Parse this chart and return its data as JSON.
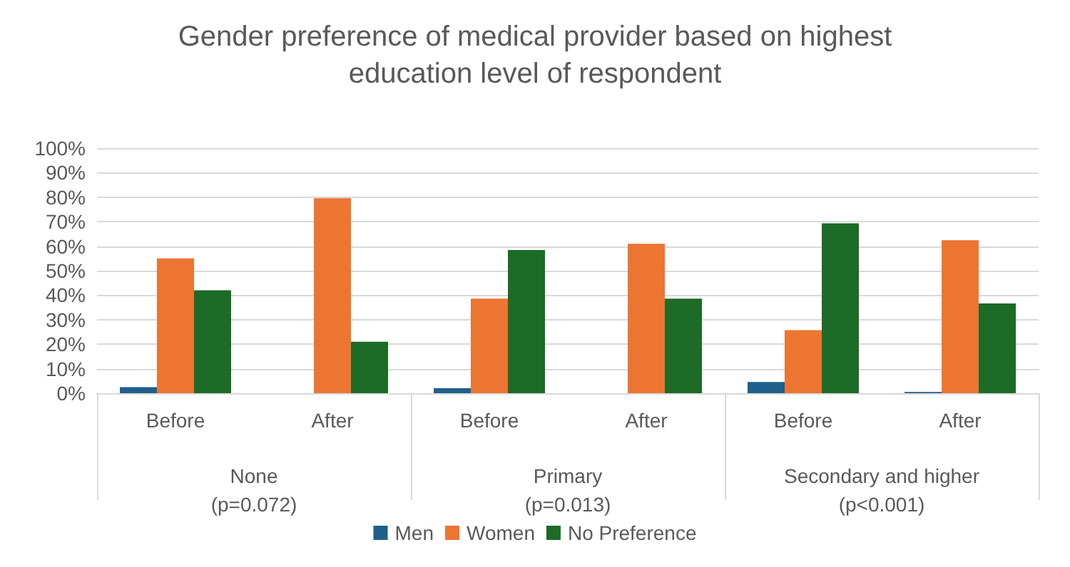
{
  "chart_data": {
    "type": "bar",
    "title": "Gender preference of medical provider based on highest\neducation level of respondent",
    "categories": [
      "Before",
      "After",
      "Before",
      "After",
      "Before",
      "After"
    ],
    "annotations": [
      "None\n(p=0.072)",
      "Primary\n(p=0.013)",
      "Secondary and higher\n(p<0.001)"
    ],
    "series": [
      {
        "name": "Men",
        "color": "#1f5f8b",
        "values": [
          2.5,
          null,
          2,
          null,
          4.6,
          0.5
        ]
      },
      {
        "name": "Women",
        "color": "#ed7532",
        "values": [
          55,
          79.6,
          38.6,
          61,
          25.7,
          62.4
        ]
      },
      {
        "name": "No Preference",
        "color": "#1c6b27",
        "values": [
          42,
          21,
          58.4,
          38.6,
          69.3,
          36.6
        ]
      }
    ],
    "ylim": [
      0,
      100
    ],
    "yticks": [
      {
        "value": 0,
        "label": "0%"
      },
      {
        "value": 10,
        "label": "10%"
      },
      {
        "value": 20,
        "label": "20%"
      },
      {
        "value": 30,
        "label": "30%"
      },
      {
        "value": 40,
        "label": "40%"
      },
      {
        "value": 50,
        "label": "50%"
      },
      {
        "value": 60,
        "label": "60%"
      },
      {
        "value": 70,
        "label": "70%"
      },
      {
        "value": 80,
        "label": "80%"
      },
      {
        "value": 90,
        "label": "90%"
      },
      {
        "value": 100,
        "label": "100%"
      }
    ],
    "grid": "y",
    "legend": "bottom"
  }
}
